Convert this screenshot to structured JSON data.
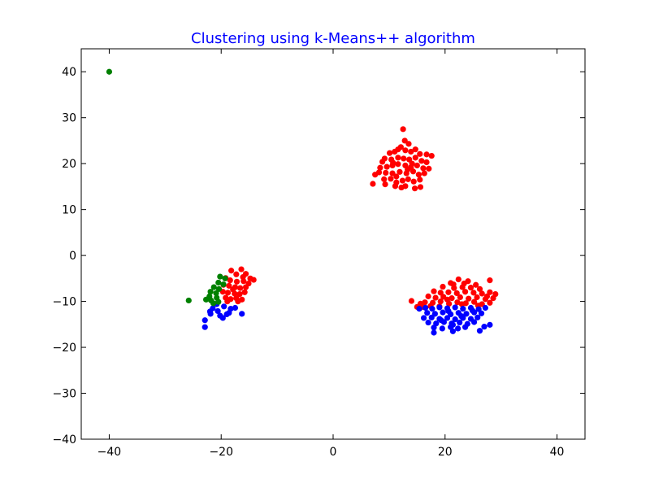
{
  "chart_data": {
    "type": "scatter",
    "title": "Clustering using k-Means++ algorithm",
    "title_color": "#0000ff",
    "xlabel": "",
    "ylabel": "",
    "xlim": [
      -45,
      45
    ],
    "ylim": [
      -40,
      45
    ],
    "xticks": [
      -40,
      -20,
      0,
      20,
      40
    ],
    "yticks": [
      -40,
      -30,
      -20,
      -10,
      0,
      10,
      20,
      30,
      40
    ],
    "xtick_labels": [
      "−40",
      "−20",
      "0",
      "20",
      "40"
    ],
    "ytick_labels": [
      "−40",
      "−30",
      "−20",
      "−10",
      "0",
      "10",
      "20",
      "30",
      "40"
    ],
    "grid": false,
    "series": [
      {
        "color": "#ff0000",
        "points": [
          [
            12.5,
            27.5
          ],
          [
            12.8,
            25.0
          ],
          [
            13.5,
            24.3
          ],
          [
            11.6,
            23.1
          ],
          [
            12.1,
            23.6
          ],
          [
            11.0,
            22.6
          ],
          [
            10.1,
            22.3
          ],
          [
            12.9,
            22.9
          ],
          [
            13.9,
            22.6
          ],
          [
            14.7,
            23.1
          ],
          [
            15.5,
            22.1
          ],
          [
            16.7,
            22.0
          ],
          [
            17.6,
            21.7
          ],
          [
            9.2,
            21.1
          ],
          [
            8.8,
            20.4
          ],
          [
            10.4,
            20.9
          ],
          [
            11.6,
            21.3
          ],
          [
            12.6,
            21.1
          ],
          [
            13.6,
            20.9
          ],
          [
            14.7,
            21.3
          ],
          [
            15.8,
            20.6
          ],
          [
            16.7,
            20.3
          ],
          [
            8.4,
            19.1
          ],
          [
            9.6,
            19.3
          ],
          [
            10.6,
            19.6
          ],
          [
            11.6,
            19.9
          ],
          [
            12.9,
            19.6
          ],
          [
            13.9,
            19.2
          ],
          [
            15.0,
            19.6
          ],
          [
            16.1,
            19.0
          ],
          [
            17.1,
            18.9
          ],
          [
            7.5,
            17.6
          ],
          [
            8.2,
            18.1
          ],
          [
            9.4,
            18.0
          ],
          [
            10.6,
            17.9
          ],
          [
            11.9,
            18.2
          ],
          [
            13.1,
            17.9
          ],
          [
            14.3,
            18.3
          ],
          [
            15.3,
            17.6
          ],
          [
            16.3,
            17.9
          ],
          [
            9.1,
            16.6
          ],
          [
            10.3,
            16.7
          ],
          [
            11.3,
            15.9
          ],
          [
            12.4,
            16.3
          ],
          [
            13.4,
            16.6
          ],
          [
            14.4,
            16.1
          ],
          [
            15.5,
            16.5
          ],
          [
            11.1,
            15.1
          ],
          [
            12.9,
            15.1
          ],
          [
            15.6,
            14.9
          ],
          [
            7.1,
            15.6
          ],
          [
            9.3,
            15.5
          ],
          [
            14.6,
            14.6
          ],
          [
            12.2,
            14.8
          ],
          [
            10.7,
            20.2
          ],
          [
            13.3,
            18.7
          ],
          [
            11.3,
            17.2
          ],
          [
            14.1,
            20.0
          ],
          [
            -18.2,
            -3.3
          ],
          [
            -16.4,
            -3.0
          ],
          [
            -17.3,
            -4.1
          ],
          [
            -15.6,
            -4.0
          ],
          [
            -14.8,
            -5.0
          ],
          [
            -14.2,
            -5.3
          ],
          [
            -19.2,
            -4.9
          ],
          [
            -18.4,
            -5.4
          ],
          [
            -17.2,
            -5.7
          ],
          [
            -16.0,
            -5.6
          ],
          [
            -15.1,
            -6.1
          ],
          [
            -19.6,
            -6.4
          ],
          [
            -18.6,
            -6.6
          ],
          [
            -17.5,
            -6.9
          ],
          [
            -16.6,
            -7.1
          ],
          [
            -15.6,
            -6.9
          ],
          [
            -19.7,
            -7.9
          ],
          [
            -18.8,
            -8.1
          ],
          [
            -17.6,
            -8.3
          ],
          [
            -16.7,
            -8.4
          ],
          [
            -15.8,
            -8.0
          ],
          [
            -19.2,
            -9.2
          ],
          [
            -18.3,
            -9.5
          ],
          [
            -17.3,
            -9.3
          ],
          [
            -16.3,
            -9.6
          ],
          [
            -18.9,
            -10.0
          ],
          [
            -17.0,
            -10.0
          ],
          [
            -17.9,
            -7.4
          ],
          [
            -16.1,
            -4.7
          ],
          [
            22.4,
            -5.2
          ],
          [
            28.0,
            -5.4
          ],
          [
            21.0,
            -6.0
          ],
          [
            23.4,
            -6.1
          ],
          [
            25.5,
            -6.4
          ],
          [
            19.6,
            -6.8
          ],
          [
            21.6,
            -7.1
          ],
          [
            23.1,
            -6.9
          ],
          [
            24.6,
            -7.0
          ],
          [
            26.2,
            -7.3
          ],
          [
            18.0,
            -7.8
          ],
          [
            19.2,
            -8.1
          ],
          [
            20.6,
            -8.0
          ],
          [
            22.1,
            -8.2
          ],
          [
            23.6,
            -7.9
          ],
          [
            25.1,
            -8.1
          ],
          [
            26.6,
            -8.3
          ],
          [
            28.0,
            -8.0
          ],
          [
            29.0,
            -8.4
          ],
          [
            17.0,
            -8.9
          ],
          [
            18.3,
            -9.2
          ],
          [
            19.7,
            -9.0
          ],
          [
            21.2,
            -9.3
          ],
          [
            22.7,
            -9.1
          ],
          [
            24.2,
            -9.4
          ],
          [
            25.7,
            -9.1
          ],
          [
            27.2,
            -9.5
          ],
          [
            28.6,
            -9.3
          ],
          [
            16.4,
            -10.2
          ],
          [
            17.8,
            -10.3
          ],
          [
            19.2,
            -10.0
          ],
          [
            20.7,
            -10.5
          ],
          [
            22.2,
            -10.2
          ],
          [
            23.7,
            -10.4
          ],
          [
            25.2,
            -10.1
          ],
          [
            26.6,
            -10.6
          ],
          [
            28.0,
            -10.3
          ],
          [
            14.0,
            -9.9
          ],
          [
            15.6,
            -10.5
          ],
          [
            21.5,
            -6.3
          ],
          [
            24.1,
            -5.6
          ],
          [
            20.4,
            -9.6
          ],
          [
            27.5,
            -8.9
          ],
          [
            23.0,
            -10.6
          ],
          [
            19.0,
            -11.1
          ],
          [
            25.9,
            -10.9
          ],
          [
            17.4,
            -11.0
          ],
          [
            16.0,
            -11.2
          ],
          [
            15.0,
            -11.2
          ]
        ]
      },
      {
        "color": "#0000ff",
        "points": [
          [
            16.5,
            -11.4
          ],
          [
            17.7,
            -11.6
          ],
          [
            19.0,
            -11.3
          ],
          [
            20.4,
            -11.5
          ],
          [
            21.8,
            -11.3
          ],
          [
            23.2,
            -11.6
          ],
          [
            24.6,
            -11.4
          ],
          [
            26.0,
            -11.7
          ],
          [
            27.2,
            -11.4
          ],
          [
            16.8,
            -12.5
          ],
          [
            18.2,
            -12.7
          ],
          [
            19.6,
            -12.4
          ],
          [
            21.0,
            -12.8
          ],
          [
            22.4,
            -12.5
          ],
          [
            23.8,
            -12.7
          ],
          [
            25.2,
            -12.4
          ],
          [
            26.5,
            -12.6
          ],
          [
            16.2,
            -13.6
          ],
          [
            17.6,
            -13.5
          ],
          [
            19.0,
            -13.8
          ],
          [
            20.4,
            -13.6
          ],
          [
            21.8,
            -13.9
          ],
          [
            23.2,
            -13.6
          ],
          [
            24.6,
            -13.8
          ],
          [
            25.8,
            -13.5
          ],
          [
            17.0,
            -14.6
          ],
          [
            18.4,
            -14.8
          ],
          [
            19.8,
            -14.5
          ],
          [
            21.2,
            -14.8
          ],
          [
            22.6,
            -14.6
          ],
          [
            24.0,
            -14.9
          ],
          [
            25.2,
            -14.5
          ],
          [
            18.0,
            -15.7
          ],
          [
            19.5,
            -15.9
          ],
          [
            21.0,
            -15.6
          ],
          [
            22.3,
            -15.9
          ],
          [
            23.6,
            -15.6
          ],
          [
            18.0,
            -16.8
          ],
          [
            21.4,
            -16.5
          ],
          [
            26.2,
            -16.4
          ],
          [
            27.0,
            -15.5
          ],
          [
            28.0,
            -15.1
          ],
          [
            20.6,
            -12.1
          ],
          [
            22.9,
            -13.2
          ],
          [
            19.3,
            -14.1
          ],
          [
            24.9,
            -12.0
          ],
          [
            21.4,
            -15.1
          ],
          [
            15.4,
            -11.6
          ],
          [
            -22.9,
            -15.6
          ],
          [
            -22.9,
            -14.1
          ],
          [
            -21.9,
            -12.7
          ],
          [
            -20.6,
            -12.1
          ],
          [
            -19.7,
            -13.6
          ],
          [
            -18.6,
            -12.5
          ],
          [
            -17.5,
            -11.4
          ],
          [
            -16.3,
            -12.7
          ],
          [
            -20.8,
            -10.6
          ],
          [
            -19.5,
            -11.1
          ],
          [
            -18.3,
            -11.6
          ],
          [
            -21.5,
            -11.5
          ],
          [
            -20.2,
            -13.1
          ],
          [
            -19.0,
            -12.8
          ],
          [
            -22.0,
            -12.2
          ]
        ]
      },
      {
        "color": "#008000",
        "points": [
          [
            -40.0,
            40.0
          ],
          [
            -25.8,
            -9.8
          ],
          [
            -20.2,
            -4.6
          ],
          [
            -19.3,
            -5.0
          ],
          [
            -20.5,
            -5.9
          ],
          [
            -19.6,
            -6.3
          ],
          [
            -21.3,
            -6.9
          ],
          [
            -20.4,
            -7.3
          ],
          [
            -21.9,
            -7.9
          ],
          [
            -20.9,
            -8.2
          ],
          [
            -22.1,
            -8.9
          ],
          [
            -20.8,
            -9.2
          ],
          [
            -21.8,
            -9.8
          ],
          [
            -20.5,
            -10.1
          ],
          [
            -21.4,
            -10.4
          ],
          [
            -22.7,
            -9.6
          ]
        ]
      }
    ]
  }
}
